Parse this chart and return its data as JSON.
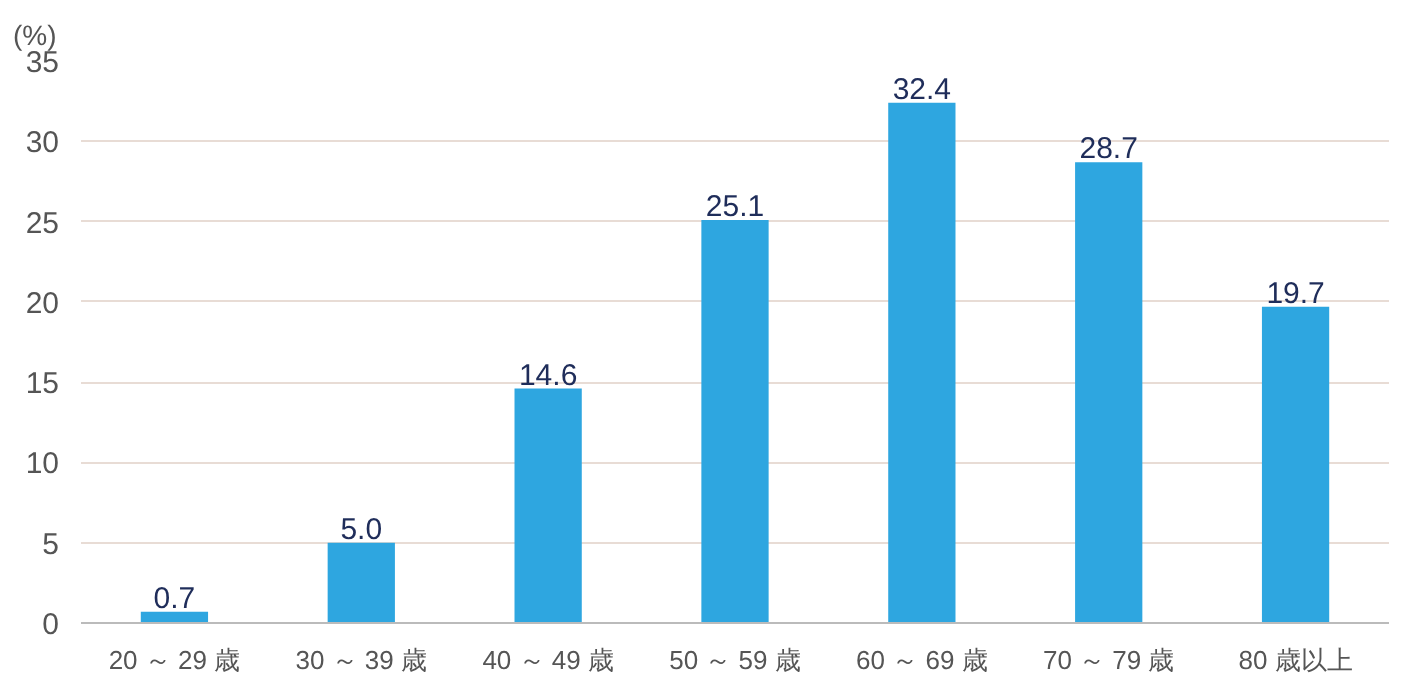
{
  "chart_data": {
    "type": "bar",
    "ylabel": "(%)",
    "categories": [
      "20 ～ 29 歳",
      "30 ～ 39 歳",
      "40 ～ 49 歳",
      "50 ～ 59 歳",
      "60 ～ 69 歳",
      "70 ～ 79 歳",
      "80 歳以上"
    ],
    "values": [
      0.7,
      5.0,
      14.6,
      25.1,
      32.4,
      28.7,
      19.7
    ],
    "color": "#2ea6e0",
    "ylim": [
      0,
      35
    ],
    "yticks": [
      0,
      5,
      10,
      15,
      20,
      25,
      30,
      35
    ],
    "value_labels": [
      "0.7",
      "5.0",
      "14.6",
      "25.1",
      "32.4",
      "28.7",
      "19.7"
    ],
    "grid": "y"
  }
}
